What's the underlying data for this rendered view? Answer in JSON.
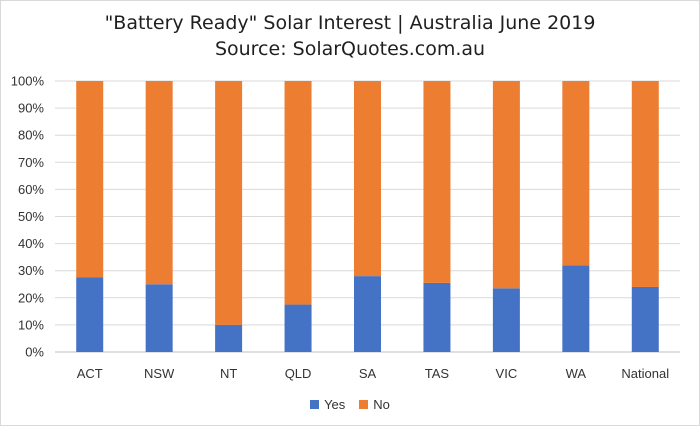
{
  "chart_data": {
    "type": "bar",
    "stacked": true,
    "title": "\"Battery Ready\" Solar Interest  |  Australia June 2019",
    "subtitle": "Source: SolarQuotes.com.au",
    "categories": [
      "ACT",
      "NSW",
      "NT",
      "QLD",
      "SA",
      "TAS",
      "VIC",
      "WA",
      "National"
    ],
    "series": [
      {
        "name": "Yes",
        "color": "#4472C4",
        "values": [
          27.5,
          25,
          10,
          17.5,
          28,
          25.5,
          23.5,
          32,
          24
        ]
      },
      {
        "name": "No",
        "color": "#ED7D31",
        "values": [
          72.5,
          75,
          90,
          82.5,
          72,
          74.5,
          76.5,
          68,
          76
        ]
      }
    ],
    "ylim": [
      0,
      100
    ],
    "ytick_labels": [
      "0%",
      "10%",
      "20%",
      "30%",
      "40%",
      "50%",
      "60%",
      "70%",
      "80%",
      "90%",
      "100%"
    ],
    "grid": true,
    "legend_position": "bottom"
  }
}
